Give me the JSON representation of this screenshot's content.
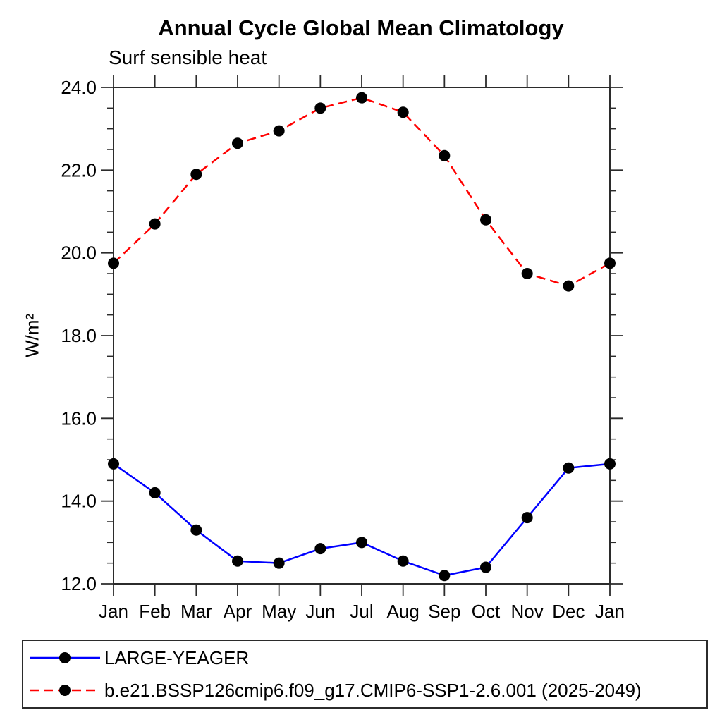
{
  "chart_data": {
    "type": "line",
    "title": "Annual Cycle Global Mean Climatology",
    "subtitle": "Surf sensible heat",
    "xlabel": "",
    "ylabel": "W/m²",
    "categories": [
      "Jan",
      "Feb",
      "Mar",
      "Apr",
      "May",
      "Jun",
      "Jul",
      "Aug",
      "Sep",
      "Oct",
      "Nov",
      "Dec",
      "Jan"
    ],
    "ylim": [
      12.0,
      24.0
    ],
    "y_major_step": 2.0,
    "y_minor_step": 0.5,
    "y_tick_labels": [
      "12.0",
      "14.0",
      "16.0",
      "18.0",
      "20.0",
      "22.0",
      "24.0"
    ],
    "grid": false,
    "legend_position": "bottom-left-box",
    "background": "#ffffff",
    "axis_color": "#2b2b2b",
    "text_color": "#000000",
    "series": [
      {
        "name": "LARGE-YEAGER",
        "color": "#0000ff",
        "line_style": "solid",
        "marker": "filled-circle",
        "marker_color": "#000000",
        "values": [
          14.9,
          14.2,
          13.3,
          12.55,
          12.5,
          12.85,
          13.0,
          12.55,
          12.2,
          12.4,
          13.6,
          14.8,
          14.9
        ]
      },
      {
        "name": "b.e21.BSSP126cmip6.f09_g17.CMIP6-SSP1-2.6.001 (2025-2049)",
        "color": "#ff0000",
        "line_style": "dashed",
        "marker": "filled-circle",
        "marker_color": "#000000",
        "values": [
          19.75,
          20.7,
          21.9,
          22.65,
          22.95,
          23.5,
          23.75,
          23.4,
          22.35,
          20.8,
          19.5,
          19.2,
          19.75
        ]
      }
    ]
  }
}
